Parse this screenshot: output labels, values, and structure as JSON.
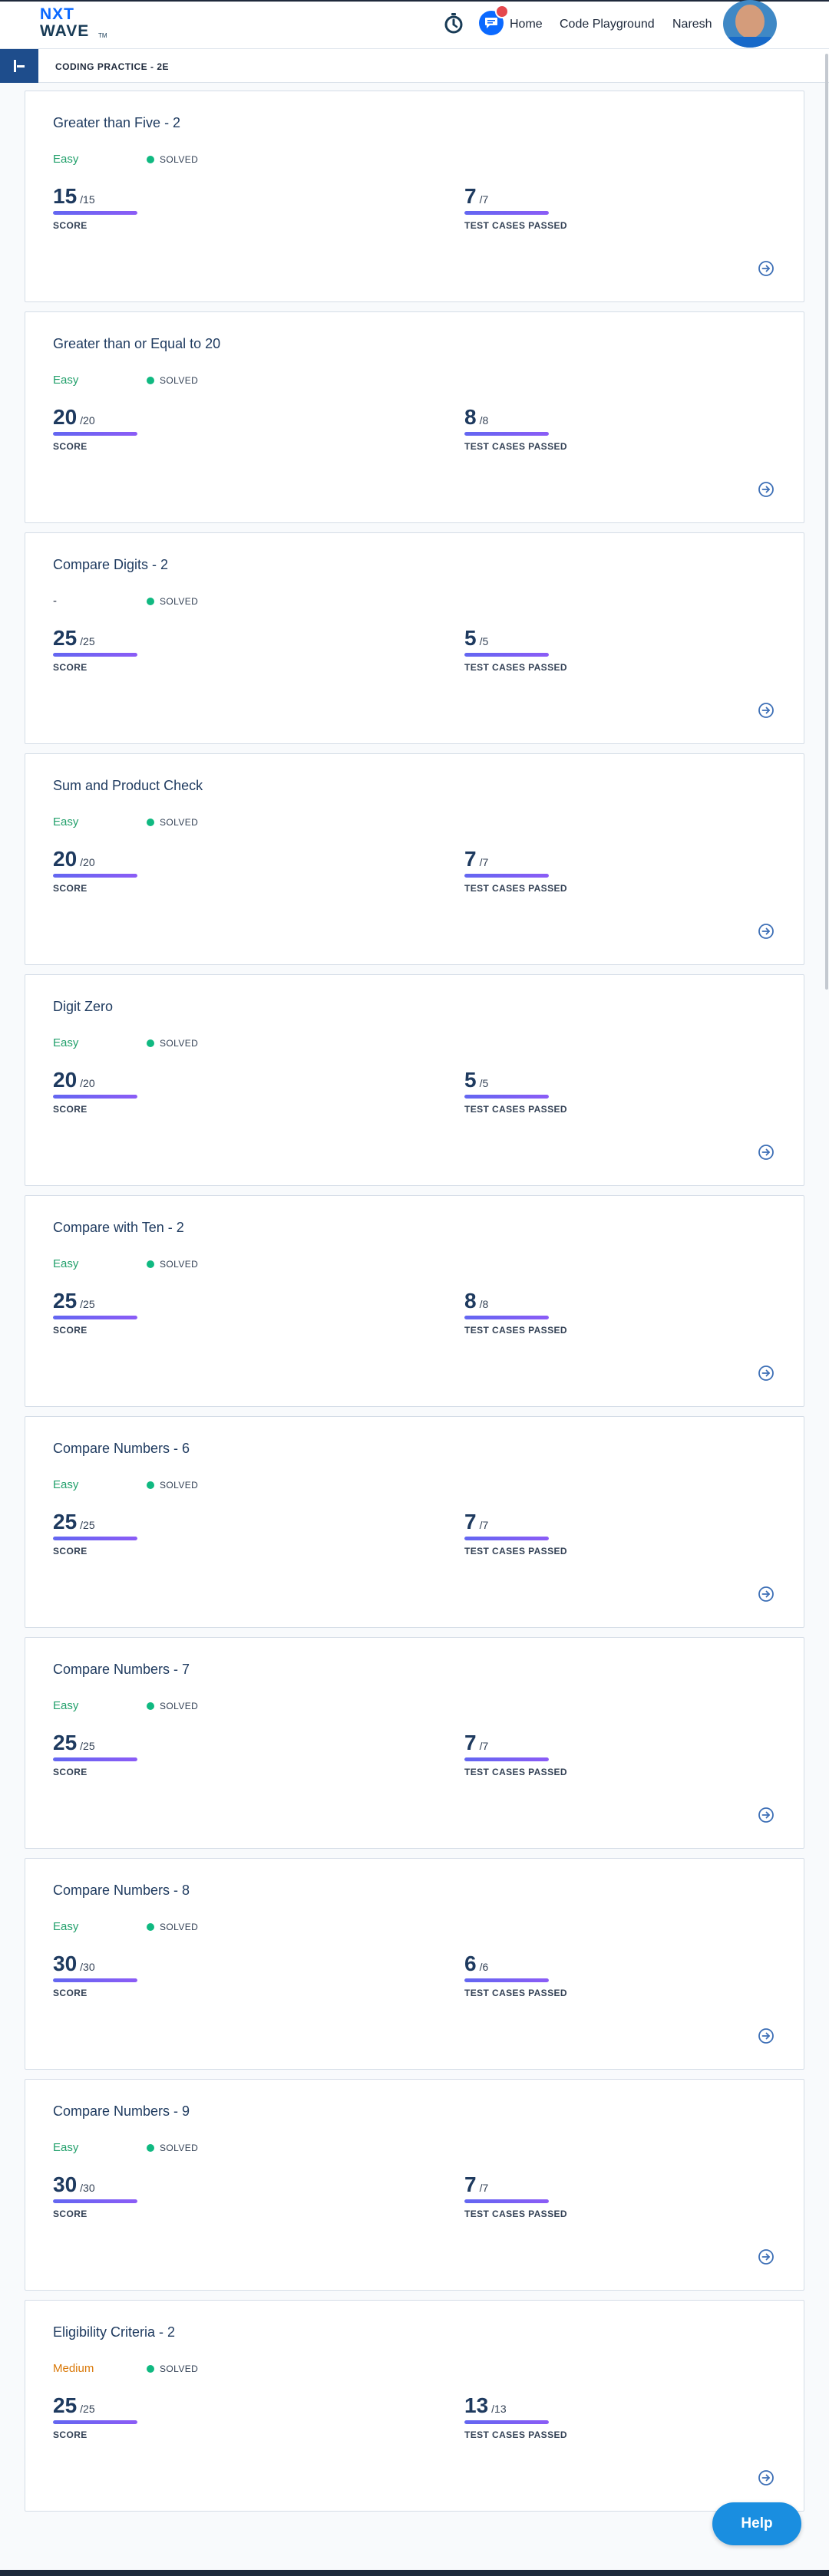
{
  "header": {
    "logo_line1": "NXT",
    "logo_line2": "WAVE",
    "logo_tm": "TM",
    "nav": {
      "home": "Home",
      "code_playground": "Code Playground",
      "user_name": "Naresh"
    },
    "icons": [
      "timer-icon",
      "chat-icon",
      "avatar"
    ]
  },
  "subheader": {
    "breadcrumb": "CODING PRACTICE - 2E"
  },
  "colors": {
    "easy": "#22a06b",
    "medium": "#d97706",
    "solved_dot": "#10b981",
    "progress": "#6d5dfc",
    "help": "#1a8ee0"
  },
  "problems": [
    {
      "title": "Greater than Five - 2",
      "difficulty": "Easy",
      "difficulty_class": "easy",
      "status": "SOLVED",
      "score": "15",
      "score_total": "/15",
      "score_label": "SCORE",
      "tests": "7",
      "tests_total": "/7",
      "tests_label": "TEST CASES PASSED",
      "score_progress": 1.0,
      "tests_progress": 1.0
    },
    {
      "title": "Greater than or Equal to 20",
      "difficulty": "Easy",
      "difficulty_class": "easy",
      "status": "SOLVED",
      "score": "20",
      "score_total": "/20",
      "score_label": "SCORE",
      "tests": "8",
      "tests_total": "/8",
      "tests_label": "TEST CASES PASSED",
      "score_progress": 1.0,
      "tests_progress": 1.0
    },
    {
      "title": "Compare Digits - 2",
      "difficulty": "-",
      "difficulty_class": "none",
      "status": "SOLVED",
      "score": "25",
      "score_total": "/25",
      "score_label": "SCORE",
      "tests": "5",
      "tests_total": "/5",
      "tests_label": "TEST CASES PASSED",
      "score_progress": 1.0,
      "tests_progress": 1.0
    },
    {
      "title": "Sum and Product Check",
      "difficulty": "Easy",
      "difficulty_class": "easy",
      "status": "SOLVED",
      "score": "20",
      "score_total": "/20",
      "score_label": "SCORE",
      "tests": "7",
      "tests_total": "/7",
      "tests_label": "TEST CASES PASSED",
      "score_progress": 1.0,
      "tests_progress": 1.0
    },
    {
      "title": "Digit Zero",
      "difficulty": "Easy",
      "difficulty_class": "easy",
      "status": "SOLVED",
      "score": "20",
      "score_total": "/20",
      "score_label": "SCORE",
      "tests": "5",
      "tests_total": "/5",
      "tests_label": "TEST CASES PASSED",
      "score_progress": 1.0,
      "tests_progress": 1.0
    },
    {
      "title": "Compare with Ten - 2",
      "difficulty": "Easy",
      "difficulty_class": "easy",
      "status": "SOLVED",
      "score": "25",
      "score_total": "/25",
      "score_label": "SCORE",
      "tests": "8",
      "tests_total": "/8",
      "tests_label": "TEST CASES PASSED",
      "score_progress": 1.0,
      "tests_progress": 1.0
    },
    {
      "title": "Compare Numbers - 6",
      "difficulty": "Easy",
      "difficulty_class": "easy",
      "status": "SOLVED",
      "score": "25",
      "score_total": "/25",
      "score_label": "SCORE",
      "tests": "7",
      "tests_total": "/7",
      "tests_label": "TEST CASES PASSED",
      "score_progress": 1.0,
      "tests_progress": 1.0
    },
    {
      "title": "Compare Numbers - 7",
      "difficulty": "Easy",
      "difficulty_class": "easy",
      "status": "SOLVED",
      "score": "25",
      "score_total": "/25",
      "score_label": "SCORE",
      "tests": "7",
      "tests_total": "/7",
      "tests_label": "TEST CASES PASSED",
      "score_progress": 1.0,
      "tests_progress": 1.0
    },
    {
      "title": "Compare Numbers - 8",
      "difficulty": "Easy",
      "difficulty_class": "easy",
      "status": "SOLVED",
      "score": "30",
      "score_total": "/30",
      "score_label": "SCORE",
      "tests": "6",
      "tests_total": "/6",
      "tests_label": "TEST CASES PASSED",
      "score_progress": 1.0,
      "tests_progress": 1.0
    },
    {
      "title": "Compare Numbers - 9",
      "difficulty": "Easy",
      "difficulty_class": "easy",
      "status": "SOLVED",
      "score": "30",
      "score_total": "/30",
      "score_label": "SCORE",
      "tests": "7",
      "tests_total": "/7",
      "tests_label": "TEST CASES PASSED",
      "score_progress": 1.0,
      "tests_progress": 1.0
    },
    {
      "title": "Eligibility Criteria - 2",
      "difficulty": "Medium",
      "difficulty_class": "medium",
      "status": "SOLVED",
      "score": "25",
      "score_total": "/25",
      "score_label": "SCORE",
      "tests": "13",
      "tests_total": "/13",
      "tests_label": "TEST CASES PASSED",
      "score_progress": 1.0,
      "tests_progress": 1.0
    }
  ],
  "help": {
    "label": "Help"
  }
}
